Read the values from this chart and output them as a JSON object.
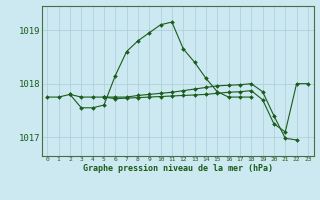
{
  "xlabel": "Graphe pression niveau de la mer (hPa)",
  "background_color": "#cce8f0",
  "grid_color": "#aaccd8",
  "line_color": "#1a5c1a",
  "marker_color": "#1a5c1a",
  "series": [
    {
      "x": [
        0,
        1,
        2,
        3,
        4,
        5
      ],
      "y": [
        1017.75,
        1017.75,
        1017.8,
        1017.75,
        1017.75,
        1017.75
      ]
    },
    {
      "x": [
        2,
        3,
        4,
        5,
        6,
        7,
        8,
        9,
        10,
        11,
        12,
        13,
        14,
        15,
        16,
        17,
        18
      ],
      "y": [
        1017.8,
        1017.55,
        1017.55,
        1017.6,
        1018.15,
        1018.6,
        1018.8,
        1018.95,
        1019.1,
        1019.15,
        1018.65,
        1018.4,
        1018.1,
        1017.85,
        1017.75,
        1017.75,
        1017.75
      ]
    },
    {
      "x": [
        5,
        6,
        7,
        8,
        9,
        10,
        11,
        12,
        13,
        14,
        15,
        16,
        17,
        18,
        19,
        20,
        21,
        22
      ],
      "y": [
        1017.75,
        1017.75,
        1017.75,
        1017.78,
        1017.8,
        1017.82,
        1017.84,
        1017.87,
        1017.9,
        1017.93,
        1017.96,
        1017.97,
        1017.98,
        1018.0,
        1017.85,
        1017.4,
        1016.98,
        1016.95
      ]
    },
    {
      "x": [
        5,
        6,
        7,
        8,
        9,
        10,
        11,
        12,
        13,
        14,
        15,
        16,
        17,
        18,
        19,
        20,
        21,
        22,
        23
      ],
      "y": [
        1017.75,
        1017.72,
        1017.73,
        1017.74,
        1017.75,
        1017.76,
        1017.77,
        1017.78,
        1017.79,
        1017.8,
        1017.82,
        1017.84,
        1017.85,
        1017.87,
        1017.7,
        1017.25,
        1017.1,
        1018.0,
        1018.0
      ]
    }
  ],
  "ylim": [
    1016.65,
    1019.45
  ],
  "yticks": [
    1017,
    1018,
    1019
  ],
  "xlim": [
    -0.5,
    23.5
  ],
  "xticks": [
    0,
    1,
    2,
    3,
    4,
    5,
    6,
    7,
    8,
    9,
    10,
    11,
    12,
    13,
    14,
    15,
    16,
    17,
    18,
    19,
    20,
    21,
    22,
    23
  ]
}
